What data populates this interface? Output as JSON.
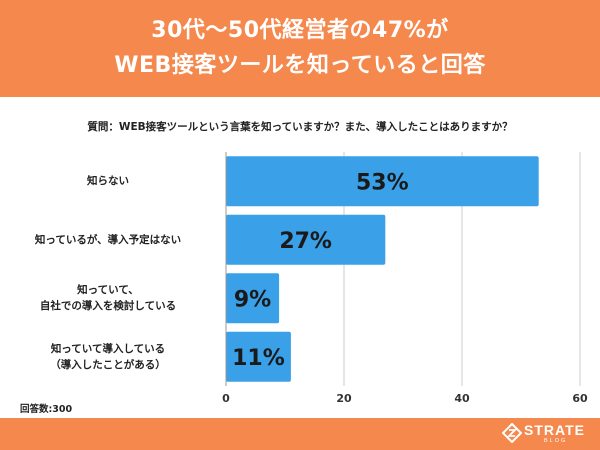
{
  "header": {
    "title_line1": "30代〜50代経営者の47%が",
    "title_line2": "WEB接客ツールを知っていると回答"
  },
  "question": "質問：WEB接客ツールという言葉を知っていますか？また、導入したことはありますか？",
  "sample_note": "回答数:300",
  "logo": {
    "name": "STRATE",
    "sub": "BLOG"
  },
  "colors": {
    "header": "#f5894d",
    "bar": "#3aa0e8",
    "grid": "#cccccc"
  },
  "chart_data": {
    "type": "bar",
    "orientation": "horizontal",
    "categories": [
      [
        "知らない"
      ],
      [
        "知っているが、導入予定はない"
      ],
      [
        "知っていて、",
        "自社での導入を検討している"
      ],
      [
        "知っていて導入している",
        "（導入したことがある）"
      ]
    ],
    "values": [
      53,
      27,
      9,
      11
    ],
    "value_labels": [
      "53%",
      "27%",
      "9%",
      "11%"
    ],
    "xlim": [
      0,
      60
    ],
    "xticks": [
      0,
      20,
      40,
      60
    ],
    "grid": true,
    "title": "",
    "xlabel": "",
    "ylabel": ""
  }
}
